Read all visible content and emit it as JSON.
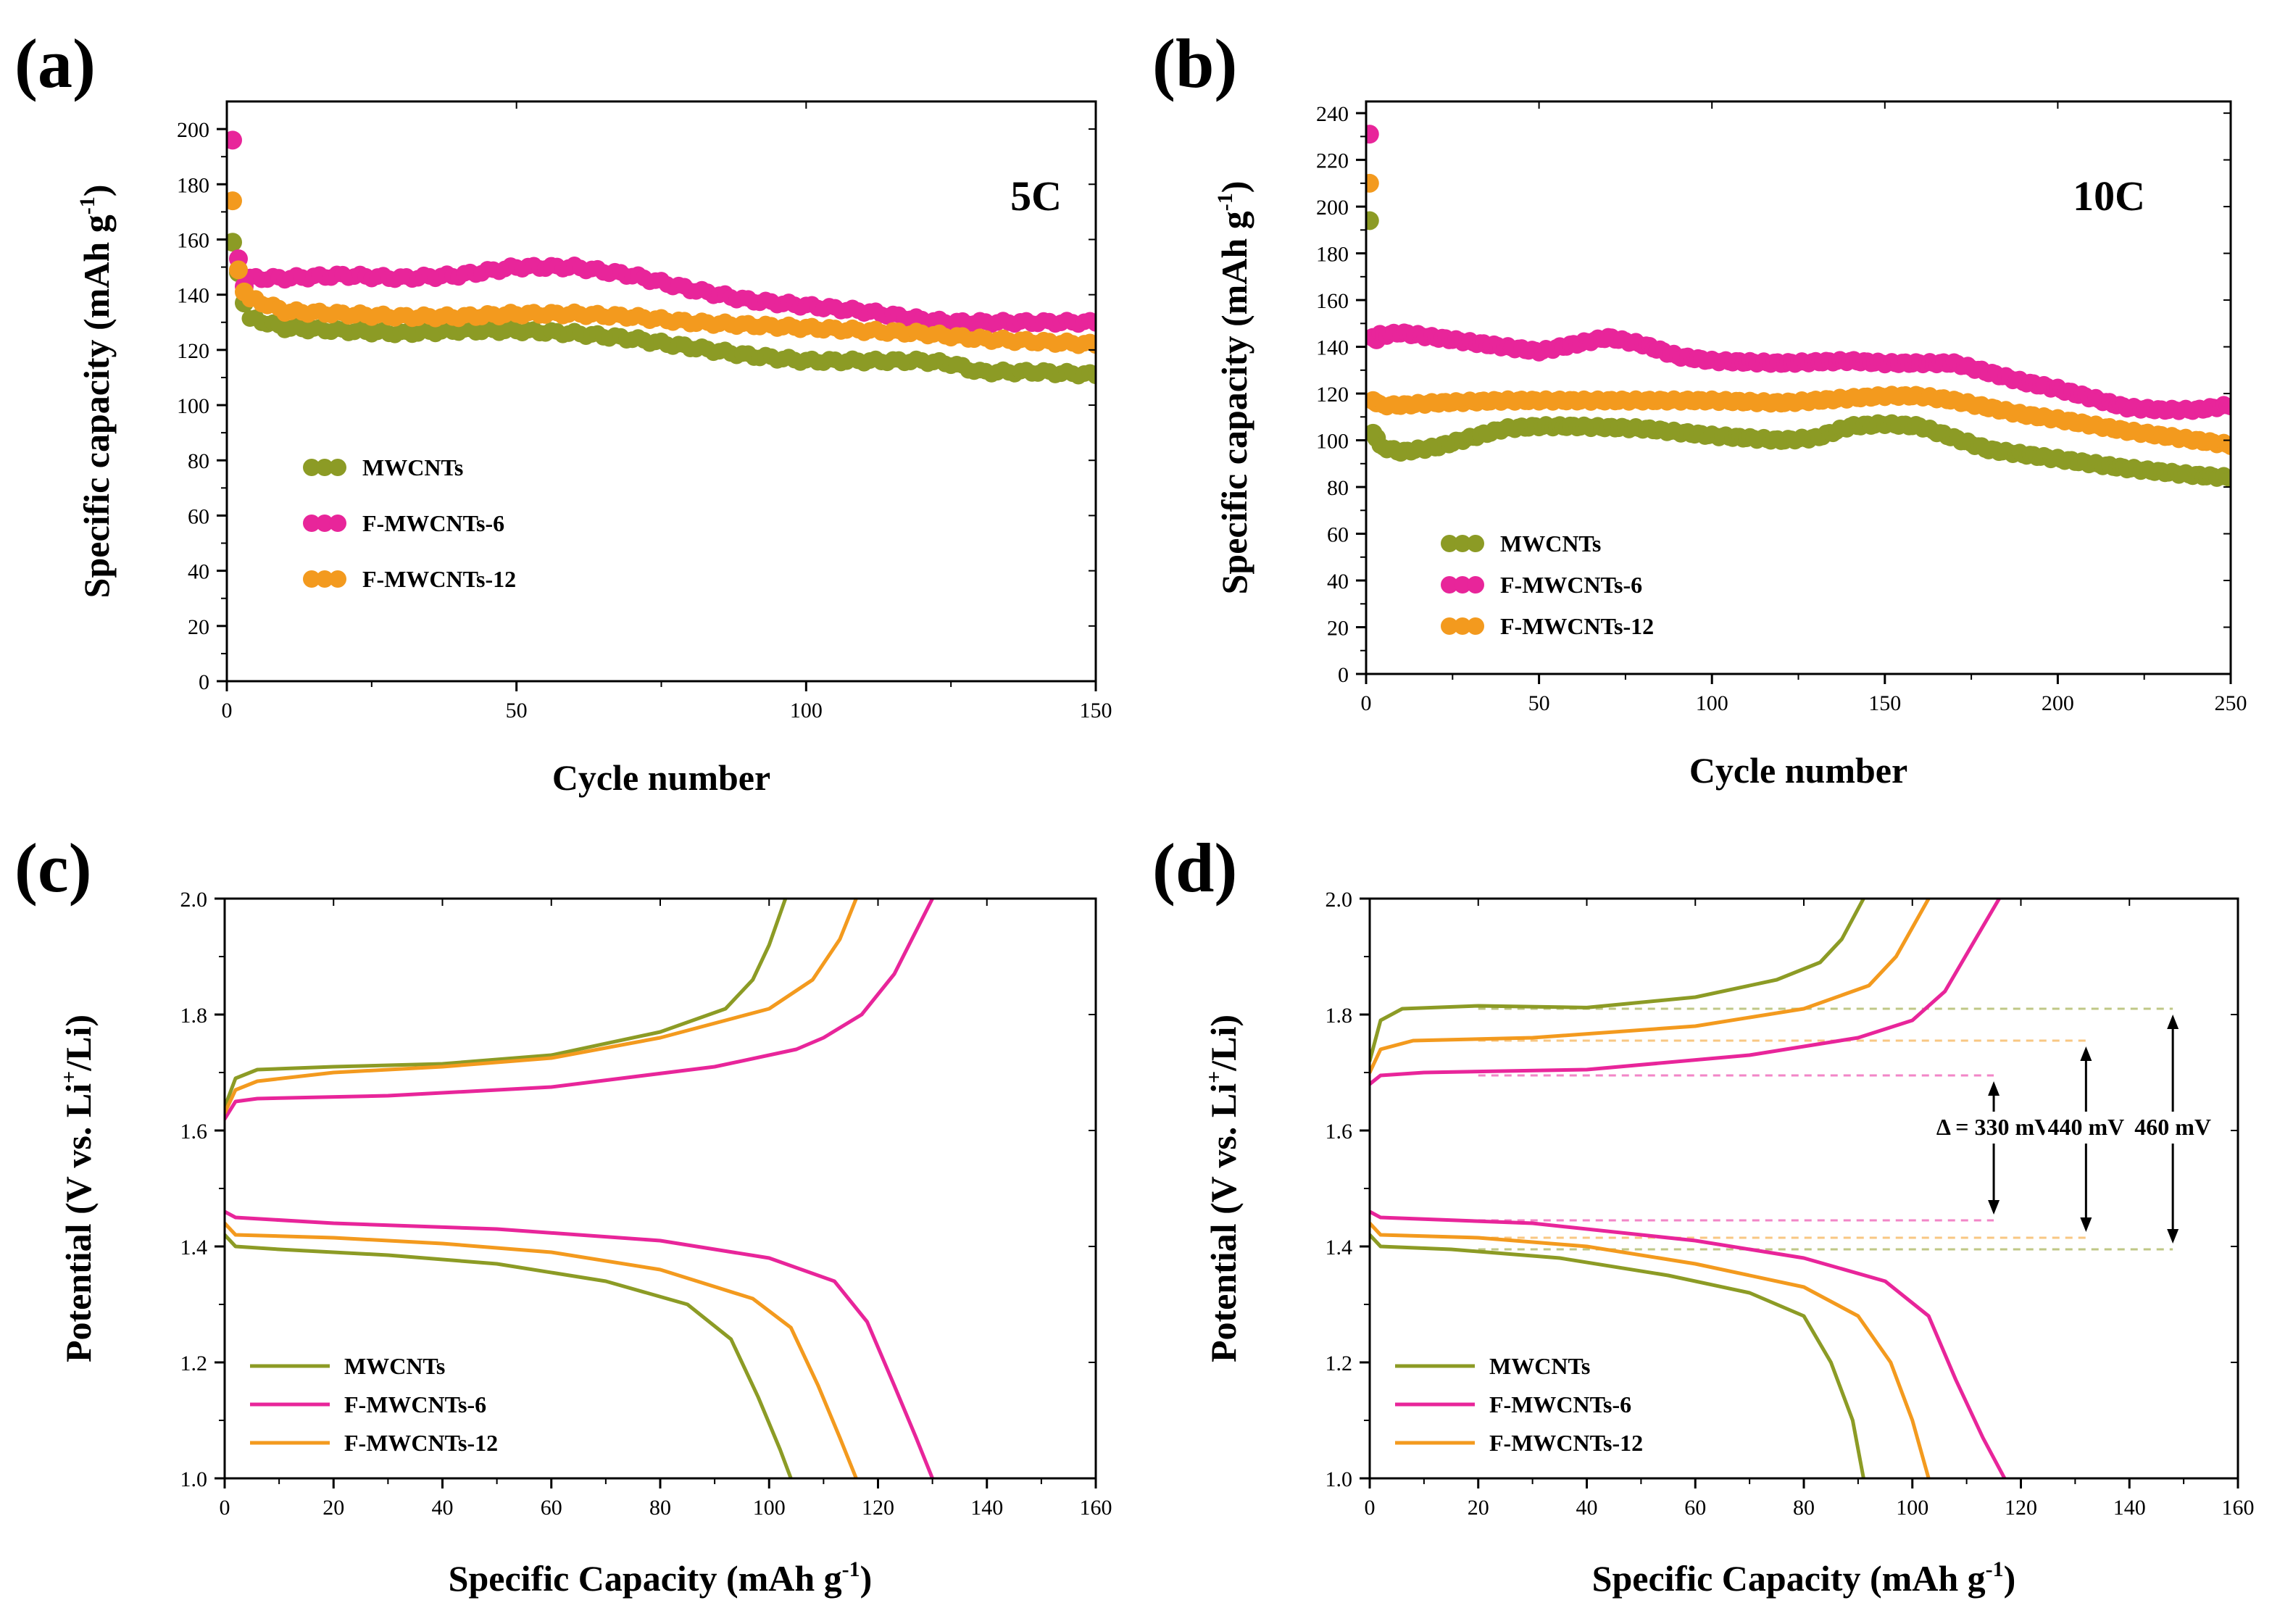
{
  "colors": {
    "MWCNTs": "#8c9b25",
    "F-MWCNTs-6": "#e8259a",
    "F-MWCNTs-12": "#f39a1e",
    "axis": "#000000"
  },
  "chart_data": [
    {
      "panel": "(a)",
      "type": "scatter",
      "annotation": "5C",
      "xlabel": "Cycle number",
      "ylabel": "Specific capacity (mAh g",
      "ylabel_sup": "-1",
      "ylabel_end": ")",
      "xlim": [
        0,
        150
      ],
      "ylim": [
        0,
        210
      ],
      "xticks": [
        0,
        50,
        100,
        150
      ],
      "yticks": [
        0,
        20,
        40,
        60,
        80,
        100,
        120,
        140,
        160,
        180,
        200
      ],
      "legend": [
        "MWCNTs",
        "F-MWCNTs-6",
        "F-MWCNTs-12"
      ],
      "legend_position": "center-left",
      "series": [
        {
          "name": "MWCNTs",
          "first": [
            [
              1,
              159
            ],
            [
              2,
              148
            ],
            [
              3,
              137
            ]
          ],
          "x": [
            5,
            10,
            20,
            30,
            40,
            50,
            60,
            70,
            80,
            90,
            100,
            110,
            120,
            125,
            130,
            140,
            150
          ],
          "y": [
            131,
            128,
            127,
            126,
            127,
            127,
            126,
            124,
            121,
            118,
            116,
            116,
            116,
            115,
            112,
            112,
            111
          ]
        },
        {
          "name": "F-MWCNTs-6",
          "first": [
            [
              1,
              196
            ],
            [
              2,
              153
            ],
            [
              3,
              143
            ]
          ],
          "x": [
            5,
            10,
            20,
            30,
            40,
            50,
            60,
            70,
            80,
            90,
            100,
            110,
            120,
            125,
            130,
            140,
            150
          ],
          "y": [
            146,
            146,
            147,
            146,
            147,
            150,
            150,
            147,
            142,
            138,
            136,
            134,
            131,
            130,
            130,
            130,
            130
          ]
        },
        {
          "name": "F-MWCNTs-12",
          "first": [
            [
              1,
              174
            ],
            [
              2,
              149
            ],
            [
              3,
              141
            ]
          ],
          "x": [
            5,
            10,
            20,
            30,
            40,
            50,
            60,
            70,
            80,
            90,
            100,
            110,
            120,
            125,
            130,
            140,
            150
          ],
          "y": [
            138,
            134,
            133,
            132,
            132,
            133,
            133,
            132,
            130,
            129,
            128,
            127,
            126,
            125,
            124,
            123,
            122
          ]
        }
      ]
    },
    {
      "panel": "(b)",
      "type": "scatter",
      "annotation": "10C",
      "xlabel": "Cycle number",
      "ylabel": "Specific capacity (mAh g",
      "ylabel_sup": "-1",
      "ylabel_end": ")",
      "xlim": [
        0,
        250
      ],
      "ylim": [
        0,
        245
      ],
      "xticks": [
        0,
        50,
        100,
        150,
        200,
        250
      ],
      "yticks": [
        0,
        20,
        40,
        60,
        80,
        100,
        120,
        140,
        160,
        180,
        200,
        220,
        240
      ],
      "legend": [
        "MWCNTs",
        "F-MWCNTs-6",
        "F-MWCNTs-12"
      ],
      "legend_position": "center-left",
      "series": [
        {
          "name": "MWCNTs",
          "first": [
            [
              1,
              194
            ],
            [
              2,
              103
            ],
            [
              3,
              101
            ]
          ],
          "x": [
            5,
            10,
            20,
            30,
            40,
            50,
            60,
            80,
            100,
            120,
            130,
            140,
            150,
            160,
            170,
            180,
            190,
            200,
            220,
            240,
            250
          ],
          "y": [
            97,
            95,
            97,
            101,
            105,
            106,
            106,
            105,
            102,
            100,
            101,
            106,
            107,
            106,
            101,
            96,
            94,
            92,
            88,
            85,
            84
          ]
        },
        {
          "name": "F-MWCNTs-6",
          "first": [
            [
              1,
              231
            ],
            [
              2,
              144
            ],
            [
              3,
              143
            ]
          ],
          "x": [
            5,
            10,
            20,
            30,
            40,
            50,
            60,
            70,
            80,
            90,
            100,
            120,
            140,
            150,
            160,
            170,
            180,
            190,
            200,
            210,
            220,
            230,
            240,
            250
          ],
          "y": [
            145,
            146,
            144,
            142,
            140,
            138,
            141,
            144,
            141,
            136,
            134,
            133,
            134,
            133,
            133,
            133,
            129,
            125,
            122,
            118,
            114,
            113,
            113,
            115
          ]
        },
        {
          "name": "F-MWCNTs-12",
          "first": [
            [
              1,
              210
            ],
            [
              2,
              117
            ],
            [
              3,
              116
            ]
          ],
          "x": [
            5,
            10,
            20,
            40,
            60,
            80,
            100,
            120,
            140,
            150,
            160,
            170,
            180,
            190,
            200,
            220,
            240,
            250
          ],
          "y": [
            115,
            115,
            116,
            117,
            117,
            117,
            117,
            116,
            118,
            119,
            119,
            117,
            114,
            111,
            109,
            104,
            100,
            98
          ]
        }
      ]
    },
    {
      "panel": "(c)",
      "type": "line",
      "xlabel": "Specific Capacity (mAh g",
      "xlabel_sup": "-1",
      "xlabel_end": ")",
      "ylabel": "Potential (V vs. Li",
      "ylabel_sup": "+",
      "ylabel_end": "/Li)",
      "xlim": [
        0,
        160
      ],
      "ylim": [
        1.0,
        2.0
      ],
      "xticks": [
        0,
        20,
        40,
        60,
        80,
        100,
        120,
        140,
        160
      ],
      "yticks": [
        1.0,
        1.2,
        1.4,
        1.6,
        1.8,
        2.0
      ],
      "legend": [
        "MWCNTs",
        "F-MWCNTs-6",
        "F-MWCNTs-12"
      ],
      "legend_position": "bottom-left",
      "series": [
        {
          "name": "MWCNTs",
          "charge": [
            [
              0,
              1.64
            ],
            [
              2,
              1.69
            ],
            [
              6,
              1.705
            ],
            [
              20,
              1.71
            ],
            [
              40,
              1.715
            ],
            [
              60,
              1.73
            ],
            [
              80,
              1.77
            ],
            [
              92,
              1.81
            ],
            [
              97,
              1.86
            ],
            [
              100,
              1.92
            ],
            [
              103,
              2.0
            ]
          ],
          "discharge": [
            [
              0,
              1.42
            ],
            [
              2,
              1.4
            ],
            [
              10,
              1.395
            ],
            [
              30,
              1.385
            ],
            [
              50,
              1.37
            ],
            [
              70,
              1.34
            ],
            [
              85,
              1.3
            ],
            [
              93,
              1.24
            ],
            [
              98,
              1.14
            ],
            [
              102,
              1.05
            ],
            [
              104,
              1.0
            ]
          ]
        },
        {
          "name": "F-MWCNTs-6",
          "charge": [
            [
              0,
              1.62
            ],
            [
              2,
              1.65
            ],
            [
              6,
              1.655
            ],
            [
              30,
              1.66
            ],
            [
              60,
              1.675
            ],
            [
              90,
              1.71
            ],
            [
              105,
              1.74
            ],
            [
              110,
              1.76
            ],
            [
              117,
              1.8
            ],
            [
              123,
              1.87
            ],
            [
              130,
              2.0
            ]
          ],
          "discharge": [
            [
              0,
              1.46
            ],
            [
              2,
              1.45
            ],
            [
              20,
              1.44
            ],
            [
              50,
              1.43
            ],
            [
              80,
              1.41
            ],
            [
              100,
              1.38
            ],
            [
              112,
              1.34
            ],
            [
              118,
              1.27
            ],
            [
              123,
              1.16
            ],
            [
              127,
              1.07
            ],
            [
              130,
              1.0
            ]
          ]
        },
        {
          "name": "F-MWCNTs-12",
          "charge": [
            [
              0,
              1.63
            ],
            [
              2,
              1.67
            ],
            [
              6,
              1.685
            ],
            [
              20,
              1.7
            ],
            [
              40,
              1.71
            ],
            [
              60,
              1.725
            ],
            [
              80,
              1.76
            ],
            [
              100,
              1.81
            ],
            [
              108,
              1.86
            ],
            [
              113,
              1.93
            ],
            [
              116,
              2.0
            ]
          ],
          "discharge": [
            [
              0,
              1.44
            ],
            [
              2,
              1.42
            ],
            [
              20,
              1.415
            ],
            [
              40,
              1.405
            ],
            [
              60,
              1.39
            ],
            [
              80,
              1.36
            ],
            [
              97,
              1.31
            ],
            [
              104,
              1.26
            ],
            [
              109,
              1.16
            ],
            [
              113,
              1.07
            ],
            [
              116,
              1.0
            ]
          ]
        }
      ]
    },
    {
      "panel": "(d)",
      "type": "line",
      "xlabel": "Specific Capacity (mAh g",
      "xlabel_sup": "-1",
      "xlabel_end": ")",
      "ylabel": "Potential (V vs. Li",
      "ylabel_sup": "+",
      "ylabel_end": "/Li)",
      "xlim": [
        0,
        160
      ],
      "ylim": [
        1.0,
        2.0
      ],
      "xticks": [
        0,
        20,
        40,
        60,
        80,
        100,
        120,
        140,
        160
      ],
      "yticks": [
        1.0,
        1.2,
        1.4,
        1.6,
        1.8,
        2.0
      ],
      "legend": [
        "MWCNTs",
        "F-MWCNTs-6",
        "F-MWCNTs-12"
      ],
      "legend_position": "bottom-left",
      "series": [
        {
          "name": "MWCNTs",
          "charge": [
            [
              0,
              1.72
            ],
            [
              2,
              1.79
            ],
            [
              6,
              1.81
            ],
            [
              20,
              1.815
            ],
            [
              40,
              1.812
            ],
            [
              60,
              1.83
            ],
            [
              75,
              1.86
            ],
            [
              83,
              1.89
            ],
            [
              87,
              1.93
            ],
            [
              91,
              2.0
            ]
          ],
          "discharge": [
            [
              0,
              1.42
            ],
            [
              2,
              1.4
            ],
            [
              15,
              1.395
            ],
            [
              35,
              1.38
            ],
            [
              55,
              1.35
            ],
            [
              70,
              1.32
            ],
            [
              80,
              1.28
            ],
            [
              85,
              1.2
            ],
            [
              89,
              1.1
            ],
            [
              91,
              1.0
            ]
          ]
        },
        {
          "name": "F-MWCNTs-6",
          "charge": [
            [
              0,
              1.68
            ],
            [
              2,
              1.695
            ],
            [
              10,
              1.7
            ],
            [
              40,
              1.705
            ],
            [
              70,
              1.73
            ],
            [
              90,
              1.76
            ],
            [
              100,
              1.79
            ],
            [
              106,
              1.84
            ],
            [
              111,
              1.92
            ],
            [
              116,
              2.0
            ]
          ],
          "discharge": [
            [
              0,
              1.46
            ],
            [
              2,
              1.45
            ],
            [
              30,
              1.44
            ],
            [
              60,
              1.41
            ],
            [
              80,
              1.38
            ],
            [
              95,
              1.34
            ],
            [
              103,
              1.28
            ],
            [
              108,
              1.17
            ],
            [
              113,
              1.07
            ],
            [
              117,
              1.0
            ]
          ]
        },
        {
          "name": "F-MWCNTs-12",
          "charge": [
            [
              0,
              1.7
            ],
            [
              2,
              1.74
            ],
            [
              8,
              1.755
            ],
            [
              30,
              1.76
            ],
            [
              60,
              1.78
            ],
            [
              80,
              1.81
            ],
            [
              92,
              1.85
            ],
            [
              97,
              1.9
            ],
            [
              100,
              1.95
            ],
            [
              103,
              2.0
            ]
          ],
          "discharge": [
            [
              0,
              1.44
            ],
            [
              2,
              1.42
            ],
            [
              20,
              1.415
            ],
            [
              40,
              1.4
            ],
            [
              60,
              1.37
            ],
            [
              80,
              1.33
            ],
            [
              90,
              1.28
            ],
            [
              96,
              1.2
            ],
            [
              100,
              1.1
            ],
            [
              103,
              1.0
            ]
          ]
        }
      ],
      "hysteresis": [
        {
          "label": "Δ = 330 mV",
          "series": "F-MWCNTs-6",
          "x": 115,
          "charge_v": 1.695,
          "discharge_v": 1.445,
          "line_from": 20
        },
        {
          "label": "440 mV",
          "series": "F-MWCNTs-12",
          "x": 132,
          "charge_v": 1.755,
          "discharge_v": 1.415,
          "line_from": 20
        },
        {
          "label": "460 mV",
          "series": "MWCNTs",
          "x": 148,
          "charge_v": 1.81,
          "discharge_v": 1.395,
          "line_from": 20
        }
      ]
    }
  ]
}
